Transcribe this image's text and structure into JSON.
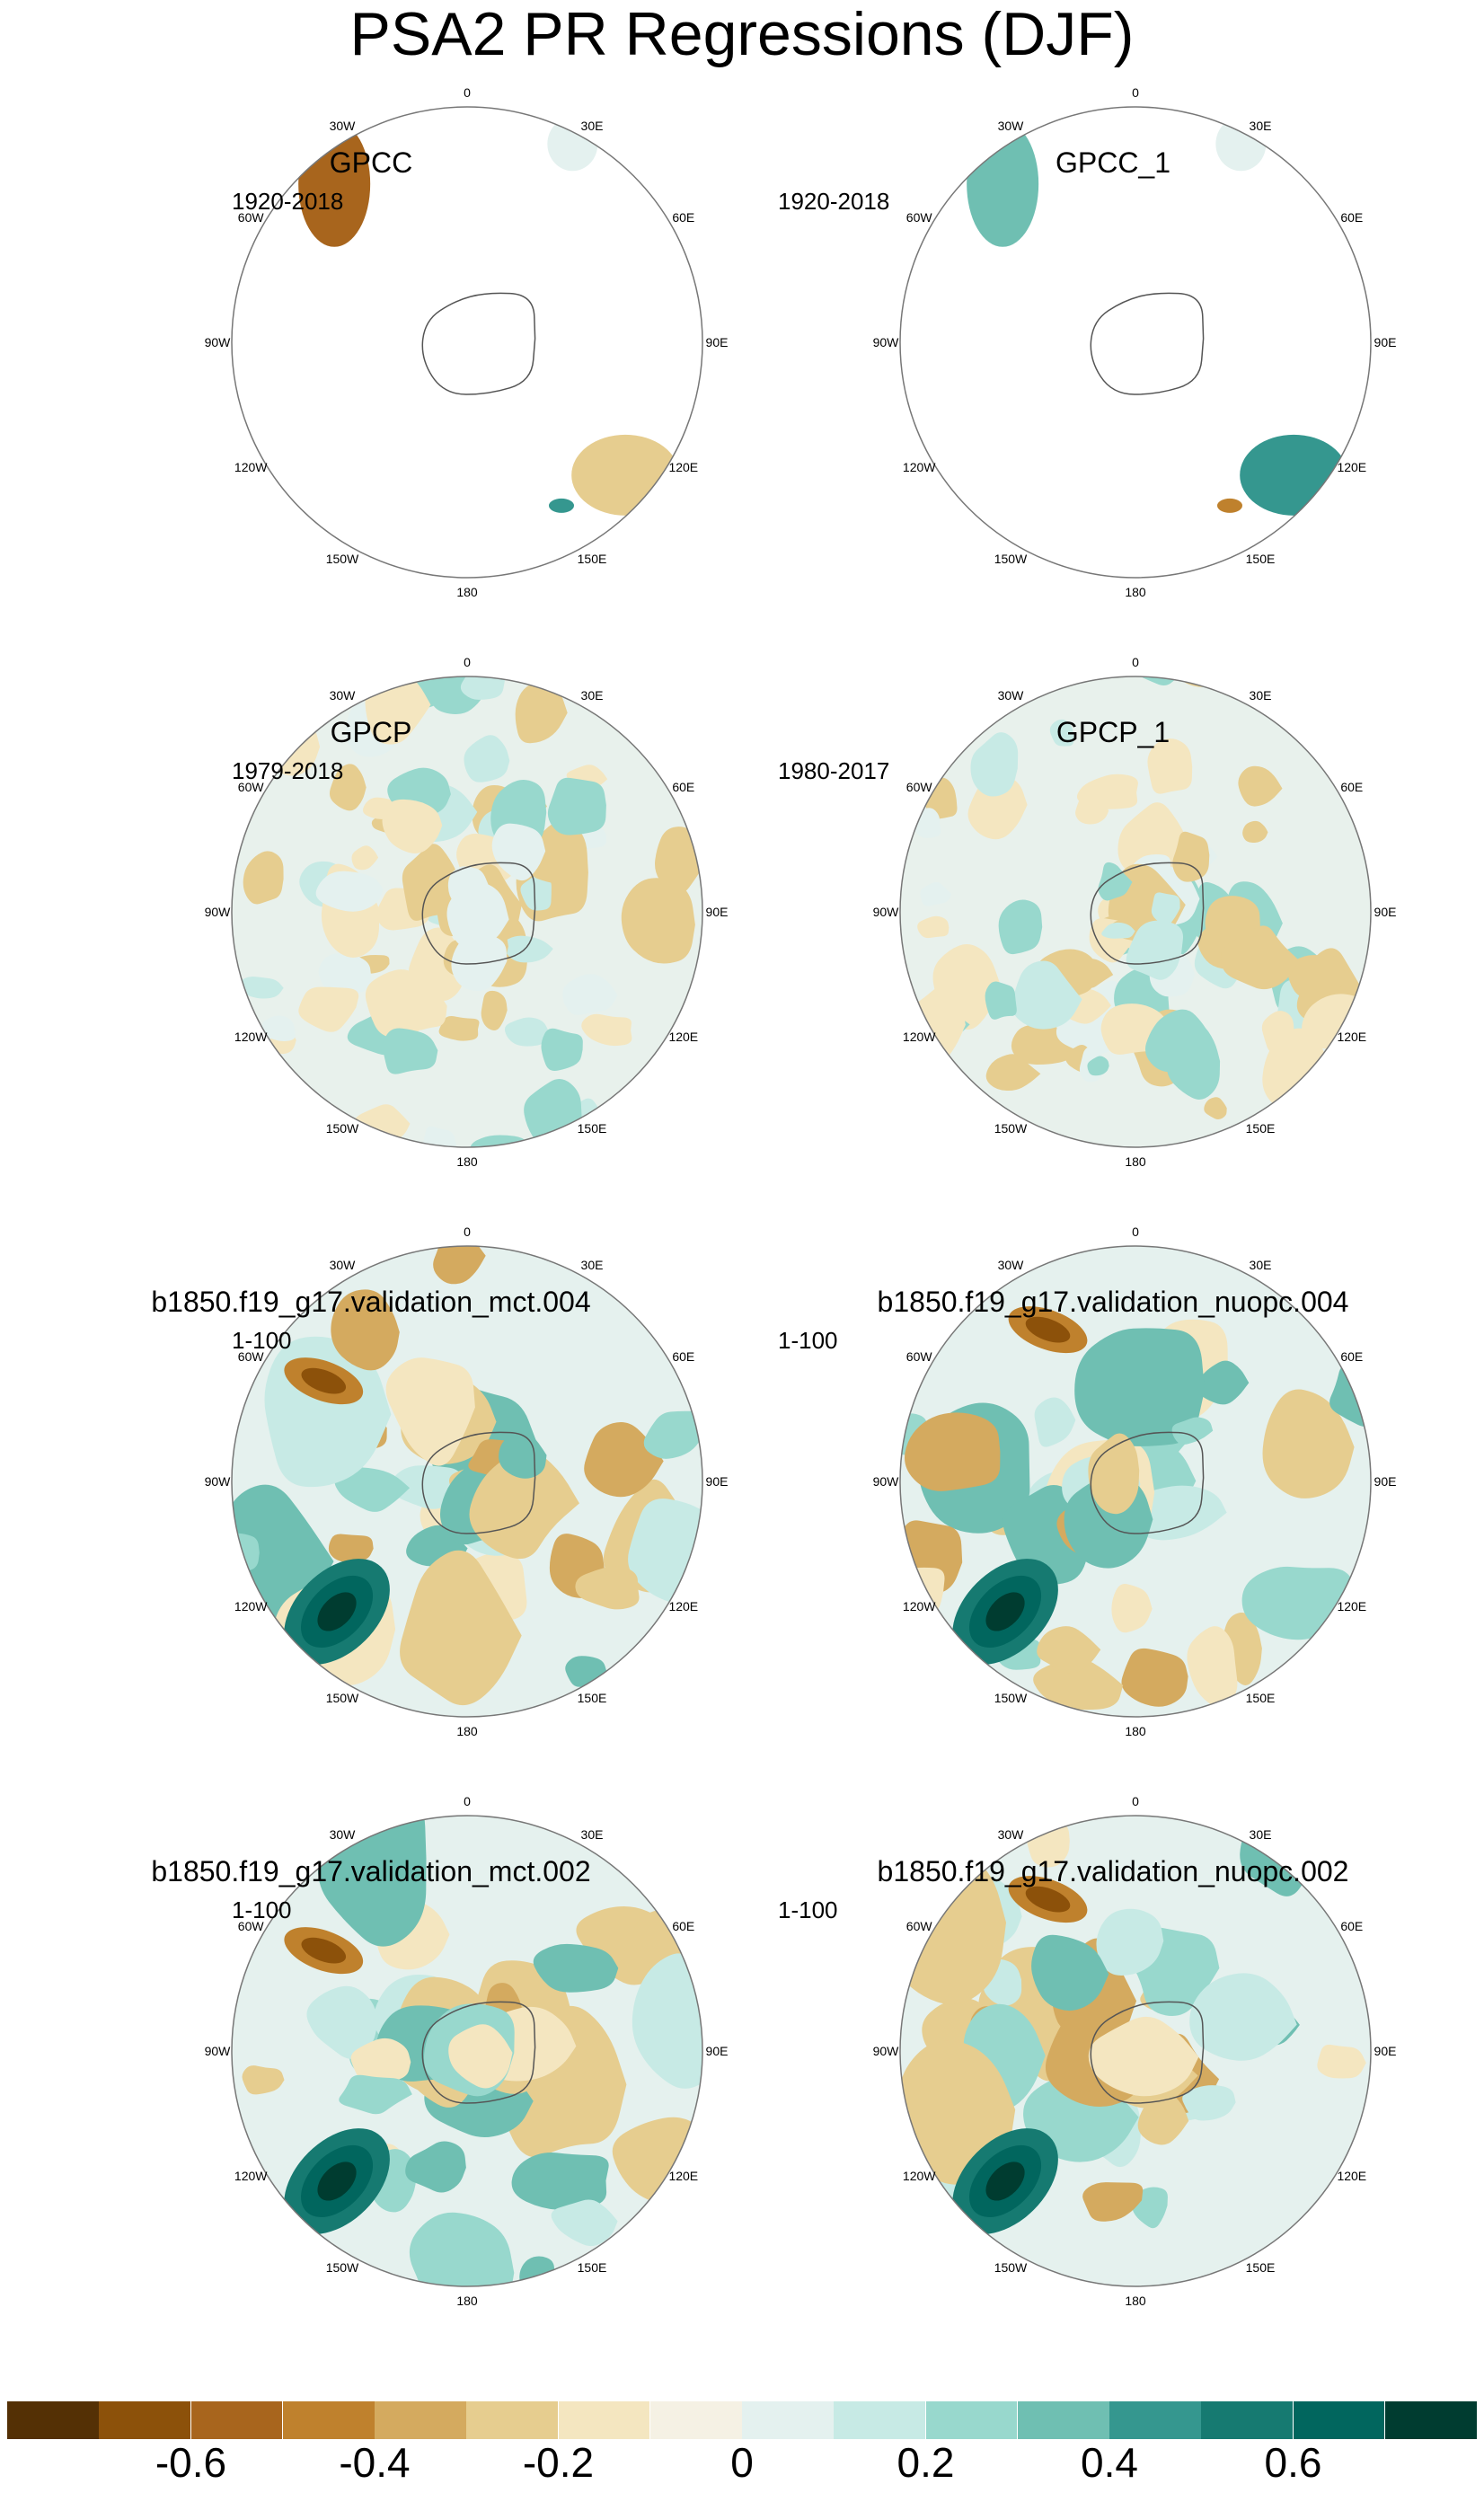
{
  "title": "PSA2 PR Regressions (DJF)",
  "panels": [
    {
      "title": "GPCC",
      "period": "1920-2018",
      "field": "sparse"
    },
    {
      "title": "GPCC_1",
      "period": "1920-2018",
      "field": "sparse"
    },
    {
      "title": "GPCP",
      "period": "1979-2018",
      "field": "obs"
    },
    {
      "title": "GPCP_1",
      "period": "1980-2017",
      "field": "obs"
    },
    {
      "title": "b1850.f19_g17.validation_mct.004",
      "period": "1-100",
      "field": "model"
    },
    {
      "title": "b1850.f19_g17.validation_nuopc.004",
      "period": "1-100",
      "field": "model"
    },
    {
      "title": "b1850.f19_g17.validation_mct.002",
      "period": "1-100",
      "field": "model"
    },
    {
      "title": "b1850.f19_g17.validation_nuopc.002",
      "period": "1-100",
      "field": "model"
    }
  ],
  "longitude_labels": [
    "0",
    "30E",
    "60E",
    "90E",
    "120E",
    "150E",
    "180",
    "150W",
    "120W",
    "90W",
    "60W",
    "30W"
  ],
  "colorbar": {
    "colors": [
      "#543005",
      "#8c510a",
      "#a8651d",
      "#bf812d",
      "#d4aa5f",
      "#e6cd8f",
      "#f4e6c0",
      "#f5f1e4",
      "#e4f1ef",
      "#c7eae5",
      "#98d8cd",
      "#6fbfb2",
      "#35978f",
      "#167a71",
      "#01665e",
      "#003c30"
    ],
    "tick_labels": [
      "-0.6",
      "-0.4",
      "-0.2",
      "0",
      "0.2",
      "0.4",
      "0.6"
    ]
  }
}
